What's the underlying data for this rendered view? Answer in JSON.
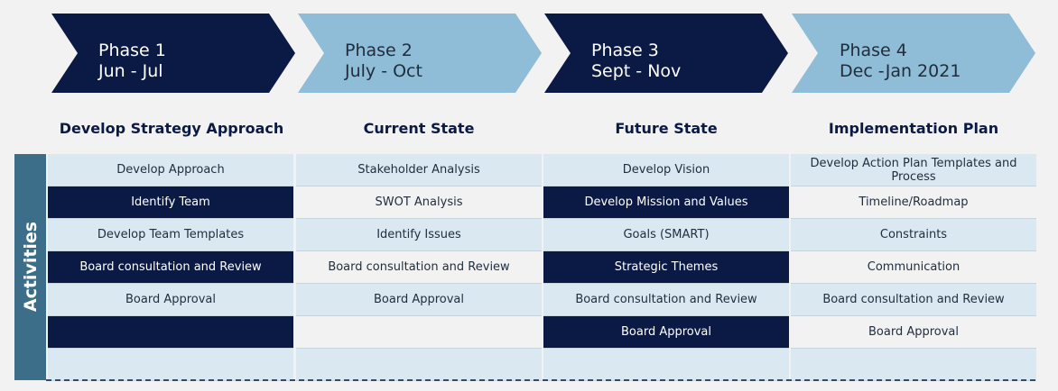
{
  "phases": [
    {
      "name": "Phase 1",
      "dates": "Jun - Jul",
      "color": "#0b1a45",
      "text_color": "#ffffff"
    },
    {
      "name": "Phase 2",
      "dates": "July - Oct",
      "color": "#8fbcd6",
      "text_color": "#1f2d3d"
    },
    {
      "name": "Phase 3",
      "dates": "Sept - Nov",
      "color": "#0b1a45",
      "text_color": "#ffffff"
    },
    {
      "name": "Phase 4",
      "dates": "Dec -Jan 2021",
      "color": "#8fbcd6",
      "text_color": "#1f2d3d"
    }
  ],
  "side_label": "Activities",
  "columns": [
    {
      "title": "Develop Strategy Approach",
      "cells": [
        {
          "text": "Develop Approach",
          "style": "light"
        },
        {
          "text": "Identify Team",
          "style": "dark"
        },
        {
          "text": "Develop Team Templates",
          "style": "light"
        },
        {
          "text": "Board consultation and Review",
          "style": "dark"
        },
        {
          "text": "Board Approval",
          "style": "light"
        },
        {
          "text": "",
          "style": "dark"
        },
        {
          "text": "",
          "style": "light"
        }
      ]
    },
    {
      "title": "Current State",
      "cells": [
        {
          "text": "Stakeholder Analysis",
          "style": "light"
        },
        {
          "text": "SWOT Analysis",
          "style": "white"
        },
        {
          "text": "Identify Issues",
          "style": "light"
        },
        {
          "text": "Board consultation and Review",
          "style": "white"
        },
        {
          "text": "Board Approval",
          "style": "light"
        },
        {
          "text": "",
          "style": "white"
        },
        {
          "text": "",
          "style": "light"
        }
      ]
    },
    {
      "title": "Future State",
      "cells": [
        {
          "text": "Develop Vision",
          "style": "light"
        },
        {
          "text": "Develop Mission and Values",
          "style": "dark"
        },
        {
          "text": "Goals (SMART)",
          "style": "light"
        },
        {
          "text": "Strategic Themes",
          "style": "dark"
        },
        {
          "text": "Board consultation and Review",
          "style": "light"
        },
        {
          "text": "Board Approval",
          "style": "dark"
        },
        {
          "text": "",
          "style": "light"
        }
      ]
    },
    {
      "title": "Implementation Plan",
      "cells": [
        {
          "text": "Develop Action Plan Templates and Process",
          "style": "light"
        },
        {
          "text": "Timeline/Roadmap",
          "style": "white"
        },
        {
          "text": "Constraints",
          "style": "light"
        },
        {
          "text": "Communication",
          "style": "white"
        },
        {
          "text": "Board consultation and Review",
          "style": "light"
        },
        {
          "text": "Board Approval",
          "style": "white"
        },
        {
          "text": "",
          "style": "light"
        }
      ]
    }
  ]
}
